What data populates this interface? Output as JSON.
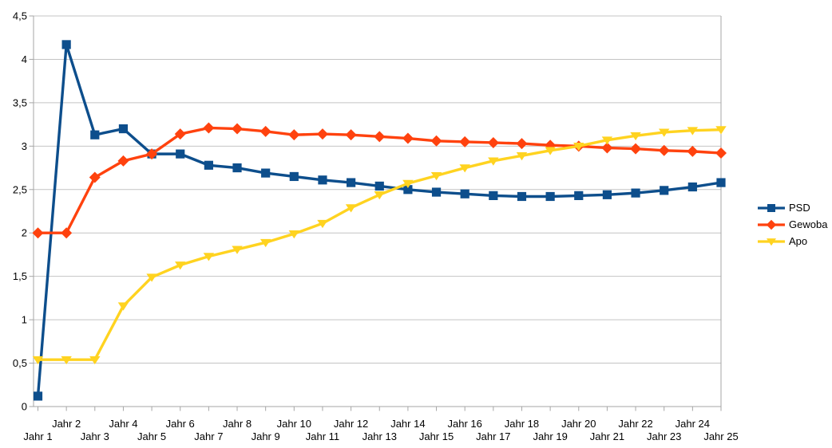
{
  "chart_data": {
    "type": "line",
    "title": "",
    "xlabel": "",
    "ylabel": "",
    "ylim": [
      0,
      4.5
    ],
    "ytick_step": 0.5,
    "ytick_labels": [
      "0",
      "0,5",
      "1",
      "1,5",
      "2",
      "2,5",
      "3",
      "3,5",
      "4",
      "4,5"
    ],
    "grid": "horizontal",
    "legend_position": "right",
    "x_label_layout": "staggered-two-rows",
    "categories": [
      "Jahr 1",
      "Jahr 2",
      "Jahr 3",
      "Jahr 4",
      "Jahr 5",
      "Jahr 6",
      "Jahr 7",
      "Jahr 8",
      "Jahr 9",
      "Jahr 10",
      "Jahr 11",
      "Jahr 12",
      "Jahr 13",
      "Jahr 14",
      "Jahr 15",
      "Jahr 16",
      "Jahr 17",
      "Jahr 18",
      "Jahr 19",
      "Jahr 20",
      "Jahr 21",
      "Jahr 22",
      "Jahr 23",
      "Jahr 24",
      "Jahr 25"
    ],
    "series": [
      {
        "name": "PSD",
        "color": "#0d4e8c",
        "marker": "square",
        "values": [
          0.12,
          4.17,
          3.13,
          3.2,
          2.91,
          2.91,
          2.78,
          2.75,
          2.69,
          2.65,
          2.61,
          2.58,
          2.54,
          2.5,
          2.47,
          2.45,
          2.43,
          2.42,
          2.42,
          2.43,
          2.44,
          2.46,
          2.49,
          2.53,
          2.58
        ]
      },
      {
        "name": "Gewoba",
        "color": "#ff420e",
        "marker": "diamond",
        "values": [
          2.0,
          2.0,
          2.64,
          2.83,
          2.91,
          3.14,
          3.21,
          3.2,
          3.17,
          3.13,
          3.14,
          3.13,
          3.11,
          3.09,
          3.06,
          3.05,
          3.04,
          3.03,
          3.01,
          3.0,
          2.98,
          2.97,
          2.95,
          2.94,
          2.92
        ]
      },
      {
        "name": "Apo",
        "color": "#ffd320",
        "marker": "triangle-down",
        "values": [
          0.54,
          0.54,
          0.54,
          1.16,
          1.49,
          1.63,
          1.73,
          1.81,
          1.89,
          1.99,
          2.11,
          2.29,
          2.44,
          2.57,
          2.66,
          2.75,
          2.83,
          2.89,
          2.95,
          3.0,
          3.07,
          3.12,
          3.16,
          3.18,
          3.19
        ]
      }
    ]
  },
  "colors": {
    "background": "#ffffff",
    "gridline": "#c4c4c4",
    "axis": "#a6a6a6",
    "text": "#000000"
  }
}
